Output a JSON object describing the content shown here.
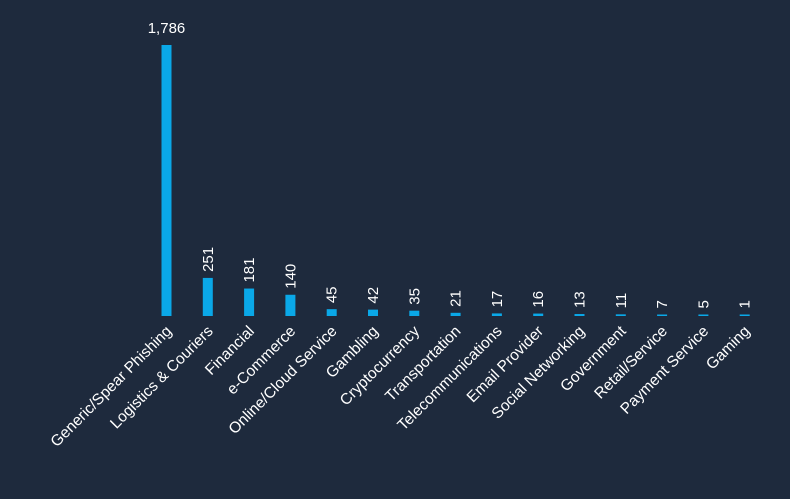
{
  "chart_data": {
    "type": "bar",
    "categories": [
      "Generic/Spear Phishing",
      "Logistics & Couriers",
      "Financial",
      "e-Commerce",
      "Online/Cloud Service",
      "Gambling",
      "Cryptocurrency",
      "Transportation",
      "Telecommunications",
      "Email Provider",
      "Social Networking",
      "Government",
      "Retail/Service",
      "Payment Service",
      "Gaming"
    ],
    "values": [
      1786,
      251,
      181,
      140,
      45,
      42,
      35,
      21,
      17,
      16,
      13,
      11,
      7,
      5,
      1
    ],
    "value_labels": [
      "1,786",
      "251",
      "181",
      "140",
      "45",
      "42",
      "35",
      "21",
      "17",
      "16",
      "13",
      "11",
      "7",
      "5",
      "1"
    ],
    "ylim": [
      0,
      1786
    ],
    "grid": false,
    "legend": "none",
    "colors": {
      "bar": "#0aa8e8",
      "background": "#1e2a3d",
      "text": "#ffffff"
    }
  }
}
